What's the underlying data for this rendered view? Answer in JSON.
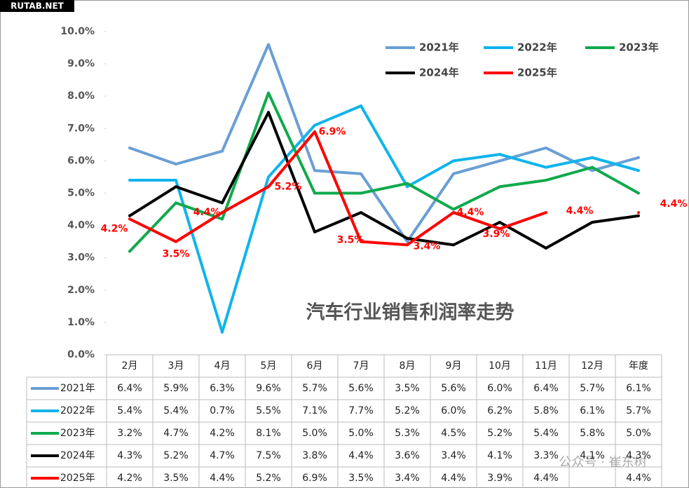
{
  "chart_data": {
    "type": "line",
    "title": "汽车行业销售利润率走势",
    "watermark": "RUTAB.NET",
    "source_watermark": "公众号 · 崔东树",
    "categories": [
      "2月",
      "3月",
      "4月",
      "5月",
      "6月",
      "7月",
      "8月",
      "9月",
      "10月",
      "11月",
      "12月",
      "年度"
    ],
    "ylim": [
      0,
      10
    ],
    "yticks": [
      {
        "value": 0,
        "label": "0.0%"
      },
      {
        "value": 1,
        "label": "1.0%"
      },
      {
        "value": 2,
        "label": "2.0%"
      },
      {
        "value": 3,
        "label": "3.0%"
      },
      {
        "value": 4,
        "label": "4.0%"
      },
      {
        "value": 5,
        "label": "5.0%"
      },
      {
        "value": 6,
        "label": "6.0%"
      },
      {
        "value": 7,
        "label": "7.0%"
      },
      {
        "value": 8,
        "label": "8.0%"
      },
      {
        "value": 9,
        "label": "9.0%"
      },
      {
        "value": 10,
        "label": "10.0%"
      }
    ],
    "grid": false,
    "labeled_series": 4,
    "series": [
      {
        "name": "2021年",
        "color": "#6a9fd4",
        "values": [
          6.4,
          5.9,
          6.3,
          9.6,
          5.7,
          5.6,
          3.5,
          5.6,
          6.0,
          6.4,
          5.7,
          6.1
        ],
        "value_labels": [
          "6.4%",
          "5.9%",
          "6.3%",
          "9.6%",
          "5.7%",
          "5.6%",
          "3.5%",
          "5.6%",
          "6.0%",
          "6.4%",
          "5.7%",
          "6.1%"
        ]
      },
      {
        "name": "2022年",
        "color": "#10b4ec",
        "values": [
          5.4,
          5.4,
          0.7,
          5.5,
          7.1,
          7.7,
          5.2,
          6.0,
          6.2,
          5.8,
          6.1,
          5.7
        ],
        "value_labels": [
          "5.4%",
          "5.4%",
          "0.7%",
          "5.5%",
          "7.1%",
          "7.7%",
          "5.2%",
          "6.0%",
          "6.2%",
          "5.8%",
          "6.1%",
          "5.7%"
        ]
      },
      {
        "name": "2023年",
        "color": "#10aa4c",
        "values": [
          3.2,
          4.7,
          4.2,
          8.1,
          5.0,
          5.0,
          5.3,
          4.5,
          5.2,
          5.4,
          5.8,
          5.0
        ],
        "value_labels": [
          "3.2%",
          "4.7%",
          "4.2%",
          "8.1%",
          "5.0%",
          "5.0%",
          "5.3%",
          "4.5%",
          "5.2%",
          "5.4%",
          "5.8%",
          "5.0%"
        ]
      },
      {
        "name": "2024年",
        "color": "#000000",
        "values": [
          4.3,
          5.2,
          4.7,
          7.5,
          3.8,
          4.4,
          3.6,
          3.4,
          4.1,
          3.3,
          4.1,
          4.3
        ],
        "value_labels": [
          "4.3%",
          "5.2%",
          "4.7%",
          "7.5%",
          "3.8%",
          "4.4%",
          "3.6%",
          "3.4%",
          "4.1%",
          "3.3%",
          "4.1%",
          "4.3%"
        ]
      },
      {
        "name": "2025年",
        "color": "#ff0000",
        "values": [
          4.2,
          3.5,
          4.4,
          5.2,
          6.9,
          3.5,
          3.4,
          4.4,
          3.9,
          4.4,
          null,
          4.4
        ],
        "value_labels": [
          "4.2%",
          "3.5%",
          "4.4%",
          "5.2%",
          "6.9%",
          "3.5%",
          "3.4%",
          "4.4%",
          "3.9%",
          "4.4%",
          null,
          "4.4%"
        ]
      }
    ]
  }
}
